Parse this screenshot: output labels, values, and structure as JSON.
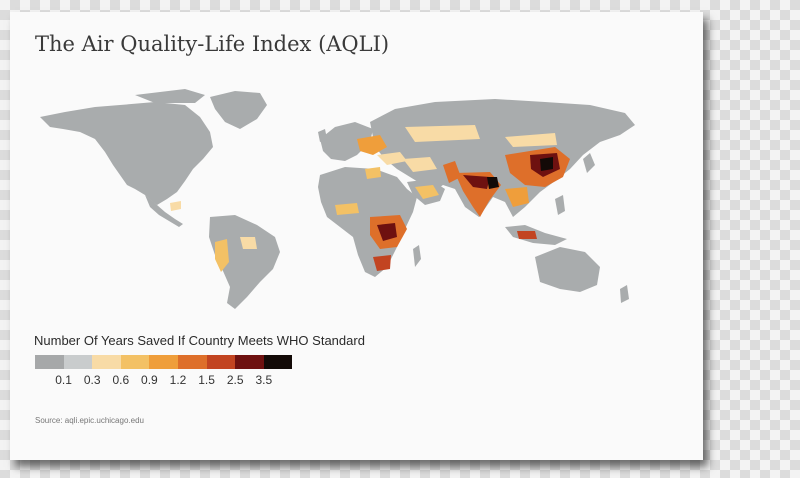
{
  "title": "The Air Quality-Life Index (AQLI)",
  "legend": {
    "title": "Number Of Years Saved If Country Meets WHO Standard",
    "colors": [
      "#a6a8a9",
      "#c9cccd",
      "#f8dba6",
      "#f3c165",
      "#ef9e3b",
      "#de6f2a",
      "#c24421",
      "#6e1110",
      "#130a07"
    ],
    "ticks": [
      "0.1",
      "0.3",
      "0.6",
      "0.9",
      "1.2",
      "1.5",
      "2.5",
      "3.5"
    ]
  },
  "map": {
    "land_color": "#a9acad",
    "regions": "world-countries"
  },
  "source": "Source: aqli.epic.uchicago.edu"
}
